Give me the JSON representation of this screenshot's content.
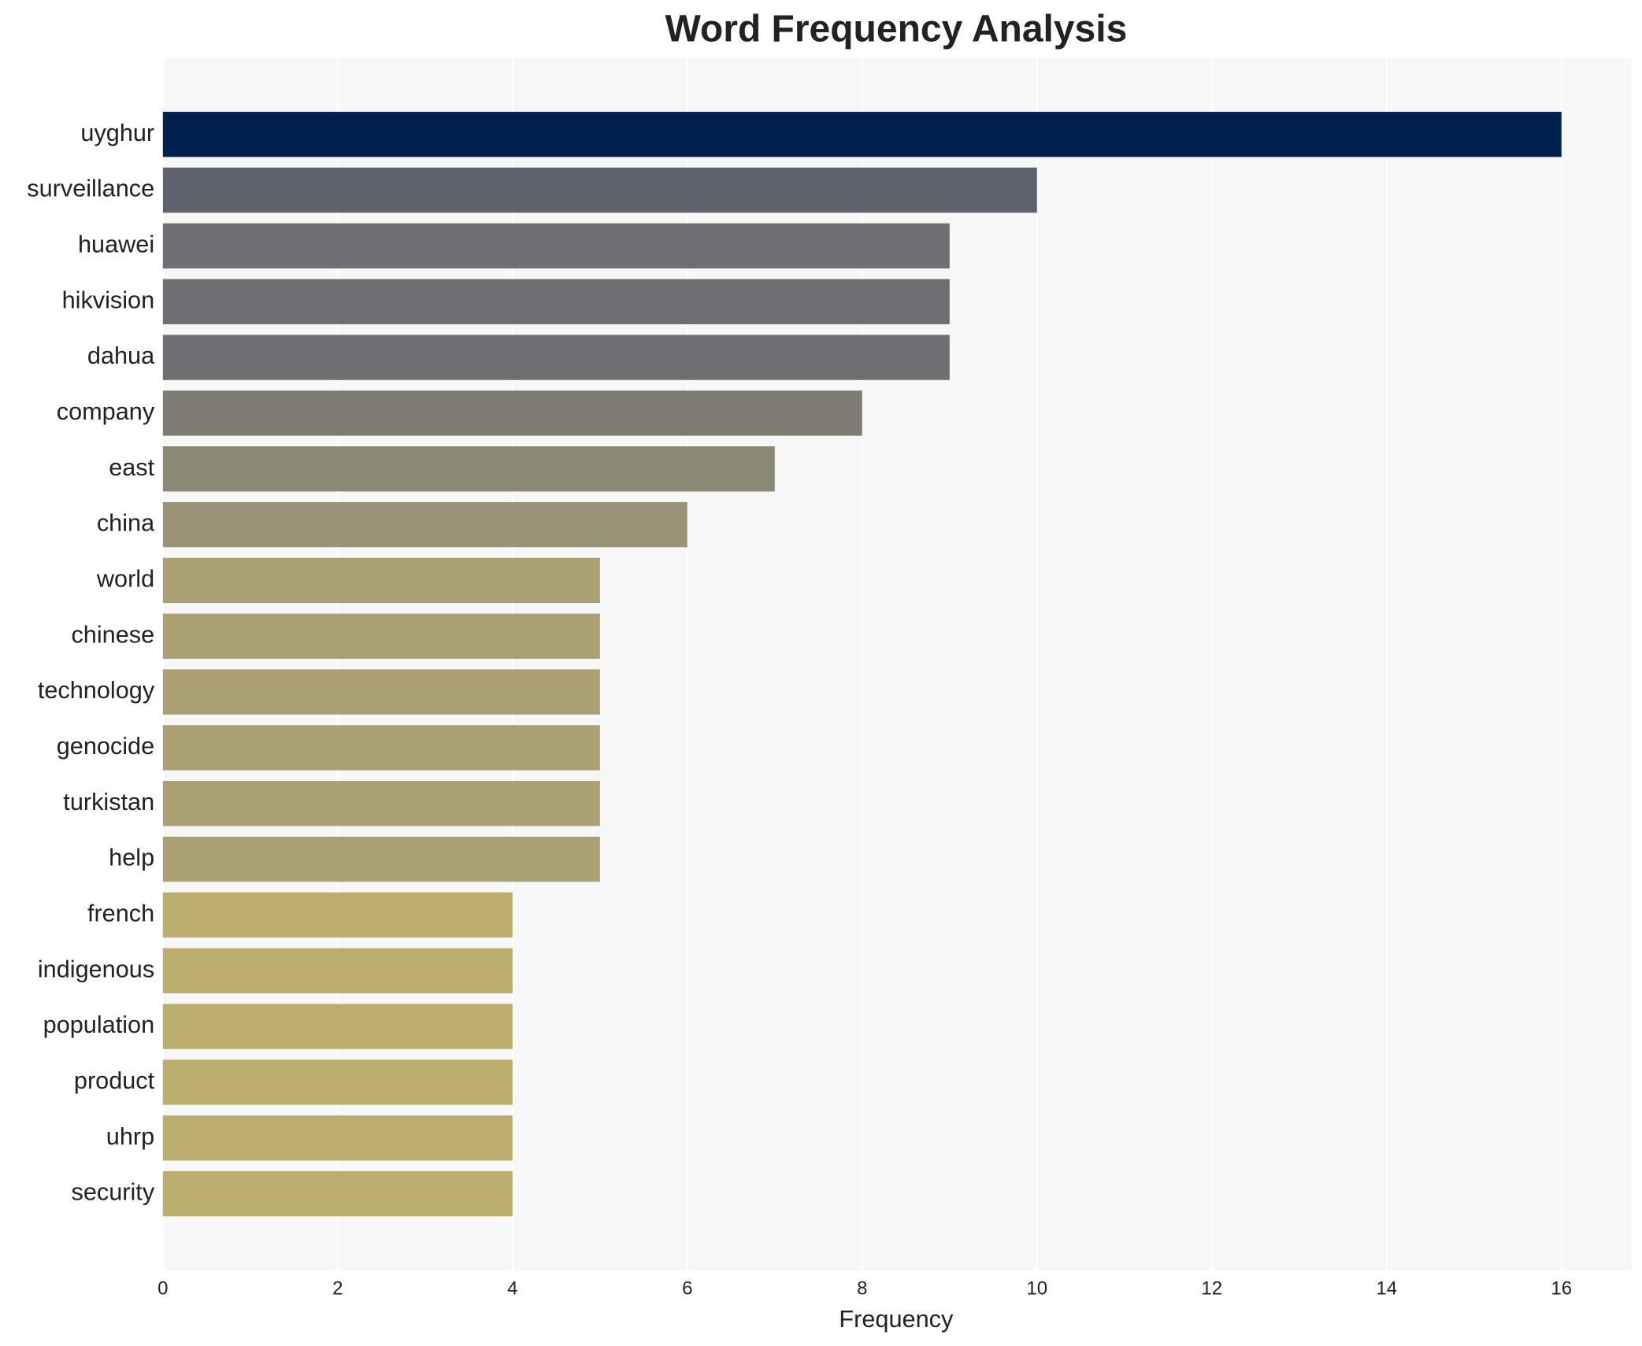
{
  "chart_data": {
    "type": "bar",
    "orientation": "horizontal",
    "title": "Word Frequency Analysis",
    "x_label": "Frequency",
    "categories": [
      "uyghur",
      "surveillance",
      "huawei",
      "hikvision",
      "dahua",
      "company",
      "east",
      "china",
      "world",
      "chinese",
      "technology",
      "genocide",
      "turkistan",
      "help",
      "french",
      "indigenous",
      "population",
      "product",
      "uhrp",
      "security"
    ],
    "values": [
      16,
      10,
      9,
      9,
      9,
      8,
      7,
      6,
      5,
      5,
      5,
      5,
      5,
      5,
      4,
      4,
      4,
      4,
      4,
      4
    ],
    "colors": [
      "#00214d",
      "#5f636e",
      "#6e6f72",
      "#6e6f72",
      "#6e6f72",
      "#7f7c73",
      "#8c8876",
      "#9b9377",
      "#aba074",
      "#aba074",
      "#aba074",
      "#aba074",
      "#aba074",
      "#aba074",
      "#bbad6d",
      "#bbad6d",
      "#bbad6d",
      "#bbad6d",
      "#bbad6d",
      "#bbad6d"
    ],
    "xlim": [
      0,
      16.8
    ],
    "xticks": [
      0,
      2,
      4,
      6,
      8,
      10,
      12,
      14,
      16
    ],
    "grid": true
  }
}
